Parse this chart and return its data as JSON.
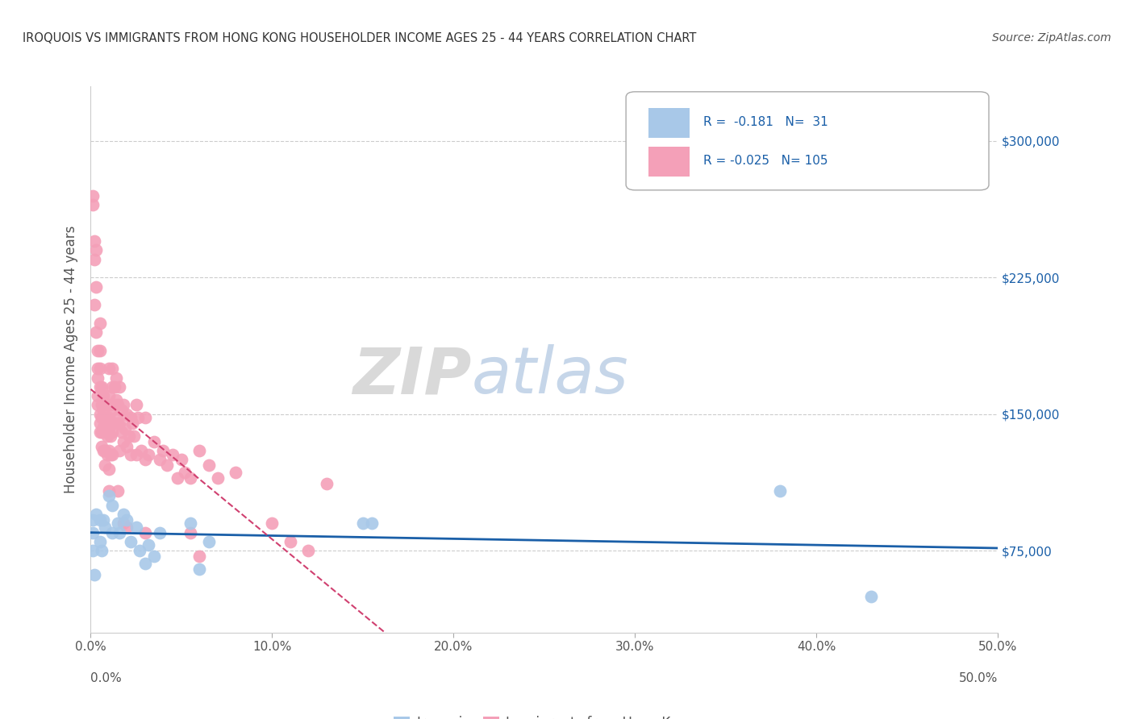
{
  "title": "IROQUOIS VS IMMIGRANTS FROM HONG KONG HOUSEHOLDER INCOME AGES 25 - 44 YEARS CORRELATION CHART",
  "source": "Source: ZipAtlas.com",
  "ylabel": "Householder Income Ages 25 - 44 years",
  "y_ticks": [
    75000,
    150000,
    225000,
    300000
  ],
  "y_tick_labels": [
    "$75,000",
    "$150,000",
    "$225,000",
    "$300,000"
  ],
  "xlim": [
    0.0,
    0.5
  ],
  "ylim": [
    30000,
    330000
  ],
  "legend_blue_label": "Iroquois",
  "legend_pink_label": "Immigrants from Hong Kong",
  "blue_color": "#a8c8e8",
  "pink_color": "#f4a0b8",
  "blue_line_color": "#1a5fa8",
  "pink_line_color": "#d04070",
  "blue_scatter": [
    [
      0.001,
      92000
    ],
    [
      0.001,
      85000
    ],
    [
      0.001,
      75000
    ],
    [
      0.002,
      62000
    ],
    [
      0.003,
      95000
    ],
    [
      0.005,
      92000
    ],
    [
      0.005,
      80000
    ],
    [
      0.006,
      75000
    ],
    [
      0.007,
      92000
    ],
    [
      0.008,
      88000
    ],
    [
      0.01,
      105000
    ],
    [
      0.012,
      100000
    ],
    [
      0.012,
      85000
    ],
    [
      0.015,
      90000
    ],
    [
      0.016,
      85000
    ],
    [
      0.018,
      95000
    ],
    [
      0.02,
      92000
    ],
    [
      0.022,
      80000
    ],
    [
      0.025,
      88000
    ],
    [
      0.027,
      75000
    ],
    [
      0.03,
      68000
    ],
    [
      0.032,
      78000
    ],
    [
      0.035,
      72000
    ],
    [
      0.038,
      85000
    ],
    [
      0.055,
      90000
    ],
    [
      0.06,
      65000
    ],
    [
      0.065,
      80000
    ],
    [
      0.15,
      90000
    ],
    [
      0.155,
      90000
    ],
    [
      0.38,
      108000
    ],
    [
      0.43,
      50000
    ]
  ],
  "pink_scatter": [
    [
      0.001,
      270000
    ],
    [
      0.001,
      265000
    ],
    [
      0.002,
      245000
    ],
    [
      0.002,
      235000
    ],
    [
      0.002,
      210000
    ],
    [
      0.003,
      240000
    ],
    [
      0.003,
      220000
    ],
    [
      0.003,
      195000
    ],
    [
      0.004,
      185000
    ],
    [
      0.004,
      175000
    ],
    [
      0.004,
      170000
    ],
    [
      0.004,
      160000
    ],
    [
      0.004,
      155000
    ],
    [
      0.005,
      200000
    ],
    [
      0.005,
      185000
    ],
    [
      0.005,
      175000
    ],
    [
      0.005,
      165000
    ],
    [
      0.005,
      150000
    ],
    [
      0.005,
      145000
    ],
    [
      0.005,
      140000
    ],
    [
      0.006,
      165000
    ],
    [
      0.006,
      155000
    ],
    [
      0.006,
      148000
    ],
    [
      0.006,
      140000
    ],
    [
      0.006,
      132000
    ],
    [
      0.007,
      160000
    ],
    [
      0.007,
      152000
    ],
    [
      0.007,
      143000
    ],
    [
      0.007,
      130000
    ],
    [
      0.008,
      155000
    ],
    [
      0.008,
      145000
    ],
    [
      0.008,
      140000
    ],
    [
      0.008,
      130000
    ],
    [
      0.008,
      122000
    ],
    [
      0.009,
      148000
    ],
    [
      0.009,
      138000
    ],
    [
      0.009,
      128000
    ],
    [
      0.01,
      175000
    ],
    [
      0.01,
      160000
    ],
    [
      0.01,
      148000
    ],
    [
      0.01,
      140000
    ],
    [
      0.01,
      130000
    ],
    [
      0.01,
      120000
    ],
    [
      0.01,
      108000
    ],
    [
      0.011,
      155000
    ],
    [
      0.011,
      145000
    ],
    [
      0.011,
      138000
    ],
    [
      0.011,
      128000
    ],
    [
      0.012,
      175000
    ],
    [
      0.012,
      165000
    ],
    [
      0.012,
      152000
    ],
    [
      0.012,
      140000
    ],
    [
      0.012,
      128000
    ],
    [
      0.013,
      165000
    ],
    [
      0.013,
      155000
    ],
    [
      0.013,
      145000
    ],
    [
      0.014,
      170000
    ],
    [
      0.014,
      158000
    ],
    [
      0.014,
      148000
    ],
    [
      0.015,
      155000
    ],
    [
      0.015,
      145000
    ],
    [
      0.015,
      108000
    ],
    [
      0.016,
      165000
    ],
    [
      0.016,
      145000
    ],
    [
      0.016,
      130000
    ],
    [
      0.017,
      152000
    ],
    [
      0.017,
      140000
    ],
    [
      0.018,
      155000
    ],
    [
      0.018,
      135000
    ],
    [
      0.018,
      90000
    ],
    [
      0.019,
      142000
    ],
    [
      0.02,
      150000
    ],
    [
      0.02,
      132000
    ],
    [
      0.02,
      88000
    ],
    [
      0.021,
      138000
    ],
    [
      0.022,
      148000
    ],
    [
      0.022,
      128000
    ],
    [
      0.023,
      145000
    ],
    [
      0.024,
      138000
    ],
    [
      0.025,
      155000
    ],
    [
      0.025,
      128000
    ],
    [
      0.026,
      148000
    ],
    [
      0.028,
      130000
    ],
    [
      0.03,
      148000
    ],
    [
      0.03,
      125000
    ],
    [
      0.03,
      85000
    ],
    [
      0.032,
      128000
    ],
    [
      0.035,
      135000
    ],
    [
      0.038,
      125000
    ],
    [
      0.04,
      130000
    ],
    [
      0.042,
      122000
    ],
    [
      0.045,
      128000
    ],
    [
      0.048,
      115000
    ],
    [
      0.05,
      125000
    ],
    [
      0.052,
      118000
    ],
    [
      0.055,
      115000
    ],
    [
      0.055,
      85000
    ],
    [
      0.06,
      130000
    ],
    [
      0.06,
      72000
    ],
    [
      0.065,
      122000
    ],
    [
      0.07,
      115000
    ],
    [
      0.08,
      118000
    ],
    [
      0.1,
      90000
    ],
    [
      0.11,
      80000
    ],
    [
      0.12,
      75000
    ],
    [
      0.13,
      112000
    ]
  ],
  "background_color": "#ffffff",
  "grid_color": "#cccccc"
}
